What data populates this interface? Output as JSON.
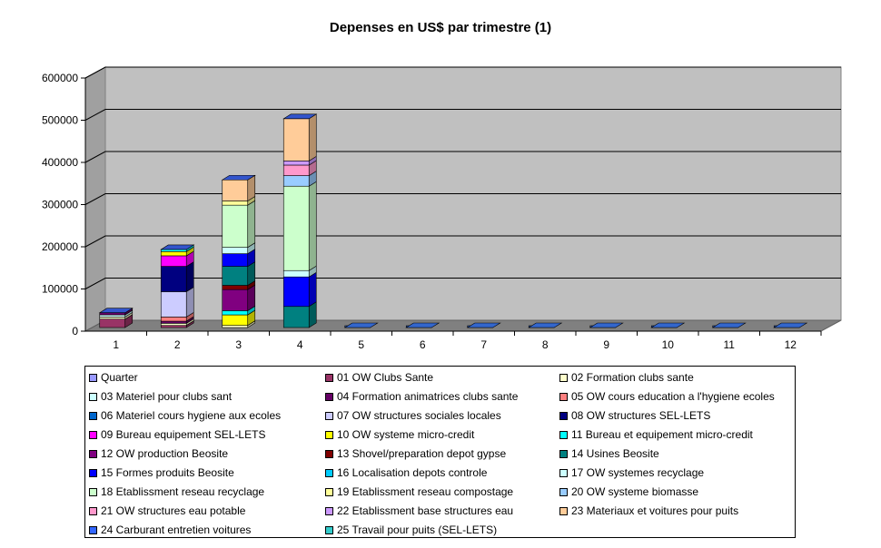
{
  "chart_data": {
    "type": "bar",
    "stacked": true,
    "three_d": true,
    "title": "Depenses en US$ par trimestre (1)",
    "xlabel": "",
    "ylabel": "",
    "ylim": [
      0,
      600000
    ],
    "y_ticks": [
      "0",
      "100000",
      "200000",
      "300000",
      "400000",
      "500000",
      "600000"
    ],
    "grid": true,
    "legend_position": "bottom",
    "categories": [
      "1",
      "2",
      "3",
      "4",
      "5",
      "6",
      "7",
      "8",
      "9",
      "10",
      "11",
      "12"
    ],
    "series": [
      {
        "name": "Quarter",
        "color": "#9999ff",
        "values": [
          0,
          0,
          0,
          0,
          0,
          0,
          0,
          0,
          0,
          0,
          0,
          0
        ]
      },
      {
        "name": "01 OW Clubs Sante",
        "color": "#993366",
        "values": [
          20000,
          5000,
          0,
          0,
          0,
          0,
          0,
          0,
          0,
          0,
          0,
          0
        ]
      },
      {
        "name": "02 Formation clubs sante",
        "color": "#ffffcc",
        "values": [
          5000,
          5000,
          5000,
          0,
          0,
          0,
          0,
          0,
          0,
          0,
          0,
          0
        ]
      },
      {
        "name": "03 Materiel pour clubs sant",
        "color": "#ccffff",
        "values": [
          5000,
          0,
          0,
          0,
          0,
          0,
          0,
          0,
          0,
          0,
          0,
          0
        ]
      },
      {
        "name": "04 Formation animatrices clubs sante",
        "color": "#660066",
        "values": [
          5000,
          5000,
          0,
          0,
          0,
          0,
          0,
          0,
          0,
          0,
          0,
          0
        ]
      },
      {
        "name": "05 OW cours education a l'hygiene ecoles",
        "color": "#ff8080",
        "values": [
          0,
          10000,
          0,
          0,
          0,
          0,
          0,
          0,
          0,
          0,
          0,
          0
        ]
      },
      {
        "name": "06 Materiel cours hygiene aux ecoles",
        "color": "#0066cc",
        "values": [
          0,
          0,
          0,
          0,
          0,
          0,
          0,
          0,
          0,
          0,
          0,
          0
        ]
      },
      {
        "name": "07 OW structures sociales locales",
        "color": "#ccccff",
        "values": [
          0,
          60000,
          0,
          0,
          0,
          0,
          0,
          0,
          0,
          0,
          0,
          0
        ]
      },
      {
        "name": "08 OW structures SEL-LETS",
        "color": "#000080",
        "values": [
          0,
          60000,
          0,
          0,
          0,
          0,
          0,
          0,
          0,
          0,
          0,
          0
        ]
      },
      {
        "name": "09 Bureau equipement SEL-LETS",
        "color": "#ff00ff",
        "values": [
          0,
          25000,
          0,
          0,
          0,
          0,
          0,
          0,
          0,
          0,
          0,
          0
        ]
      },
      {
        "name": "10 OW systeme micro-credit",
        "color": "#ffff00",
        "values": [
          0,
          10000,
          25000,
          0,
          0,
          0,
          0,
          0,
          0,
          0,
          0,
          0
        ]
      },
      {
        "name": "11 Bureau et equipement micro-credit",
        "color": "#00ffff",
        "values": [
          0,
          5000,
          10000,
          0,
          0,
          0,
          0,
          0,
          0,
          0,
          0,
          0
        ]
      },
      {
        "name": "12 OW  production Beosite",
        "color": "#800080",
        "values": [
          0,
          0,
          50000,
          0,
          0,
          0,
          0,
          0,
          0,
          0,
          0,
          0
        ]
      },
      {
        "name": "13 Shovel/preparation depot gypse",
        "color": "#800000",
        "values": [
          0,
          0,
          10000,
          0,
          0,
          0,
          0,
          0,
          0,
          0,
          0,
          0
        ]
      },
      {
        "name": "14 Usines Beosite",
        "color": "#008080",
        "values": [
          0,
          0,
          45000,
          50000,
          0,
          0,
          0,
          0,
          0,
          0,
          0,
          0
        ]
      },
      {
        "name": "15 Formes produits Beosite",
        "color": "#0000ff",
        "values": [
          0,
          0,
          30000,
          70000,
          0,
          0,
          0,
          0,
          0,
          0,
          0,
          0
        ]
      },
      {
        "name": "16 Localisation depots controle",
        "color": "#00ccff",
        "values": [
          0,
          0,
          0,
          0,
          0,
          0,
          0,
          0,
          0,
          0,
          0,
          0
        ]
      },
      {
        "name": "17 OW systemes recyclage",
        "color": "#ccffff",
        "values": [
          0,
          0,
          15000,
          15000,
          0,
          0,
          0,
          0,
          0,
          0,
          0,
          0
        ]
      },
      {
        "name": "18 Etablissment reseau recyclage",
        "color": "#ccffcc",
        "values": [
          0,
          0,
          100000,
          200000,
          0,
          0,
          0,
          0,
          0,
          0,
          0,
          0
        ]
      },
      {
        "name": "19 Etablissment reseau compostage",
        "color": "#ffff99",
        "values": [
          0,
          0,
          10000,
          0,
          0,
          0,
          0,
          0,
          0,
          0,
          0,
          0
        ]
      },
      {
        "name": "20 OW systeme biomasse",
        "color": "#99ccff",
        "values": [
          0,
          0,
          0,
          25000,
          0,
          0,
          0,
          0,
          0,
          0,
          0,
          0
        ]
      },
      {
        "name": "21 OW structures eau potable",
        "color": "#ff99cc",
        "values": [
          0,
          0,
          0,
          25000,
          0,
          0,
          0,
          0,
          0,
          0,
          0,
          0
        ]
      },
      {
        "name": "22 Etablissment base structures eau",
        "color": "#cc99ff",
        "values": [
          0,
          0,
          0,
          10000,
          0,
          0,
          0,
          0,
          0,
          0,
          0,
          0
        ]
      },
      {
        "name": "23 Materiaux et voitures pour puits",
        "color": "#ffcc99",
        "values": [
          0,
          0,
          50000,
          100000,
          0,
          0,
          0,
          0,
          0,
          0,
          0,
          0
        ]
      },
      {
        "name": "24 Carburant entretien voitures",
        "color": "#3366ff",
        "values": [
          0,
          0,
          0,
          0,
          0,
          0,
          0,
          0,
          0,
          0,
          0,
          0
        ]
      },
      {
        "name": "25 Travail pour puits (SEL-LETS)",
        "color": "#33cccc",
        "values": [
          0,
          0,
          0,
          0,
          0,
          0,
          0,
          0,
          0,
          0,
          0,
          0
        ]
      }
    ]
  }
}
